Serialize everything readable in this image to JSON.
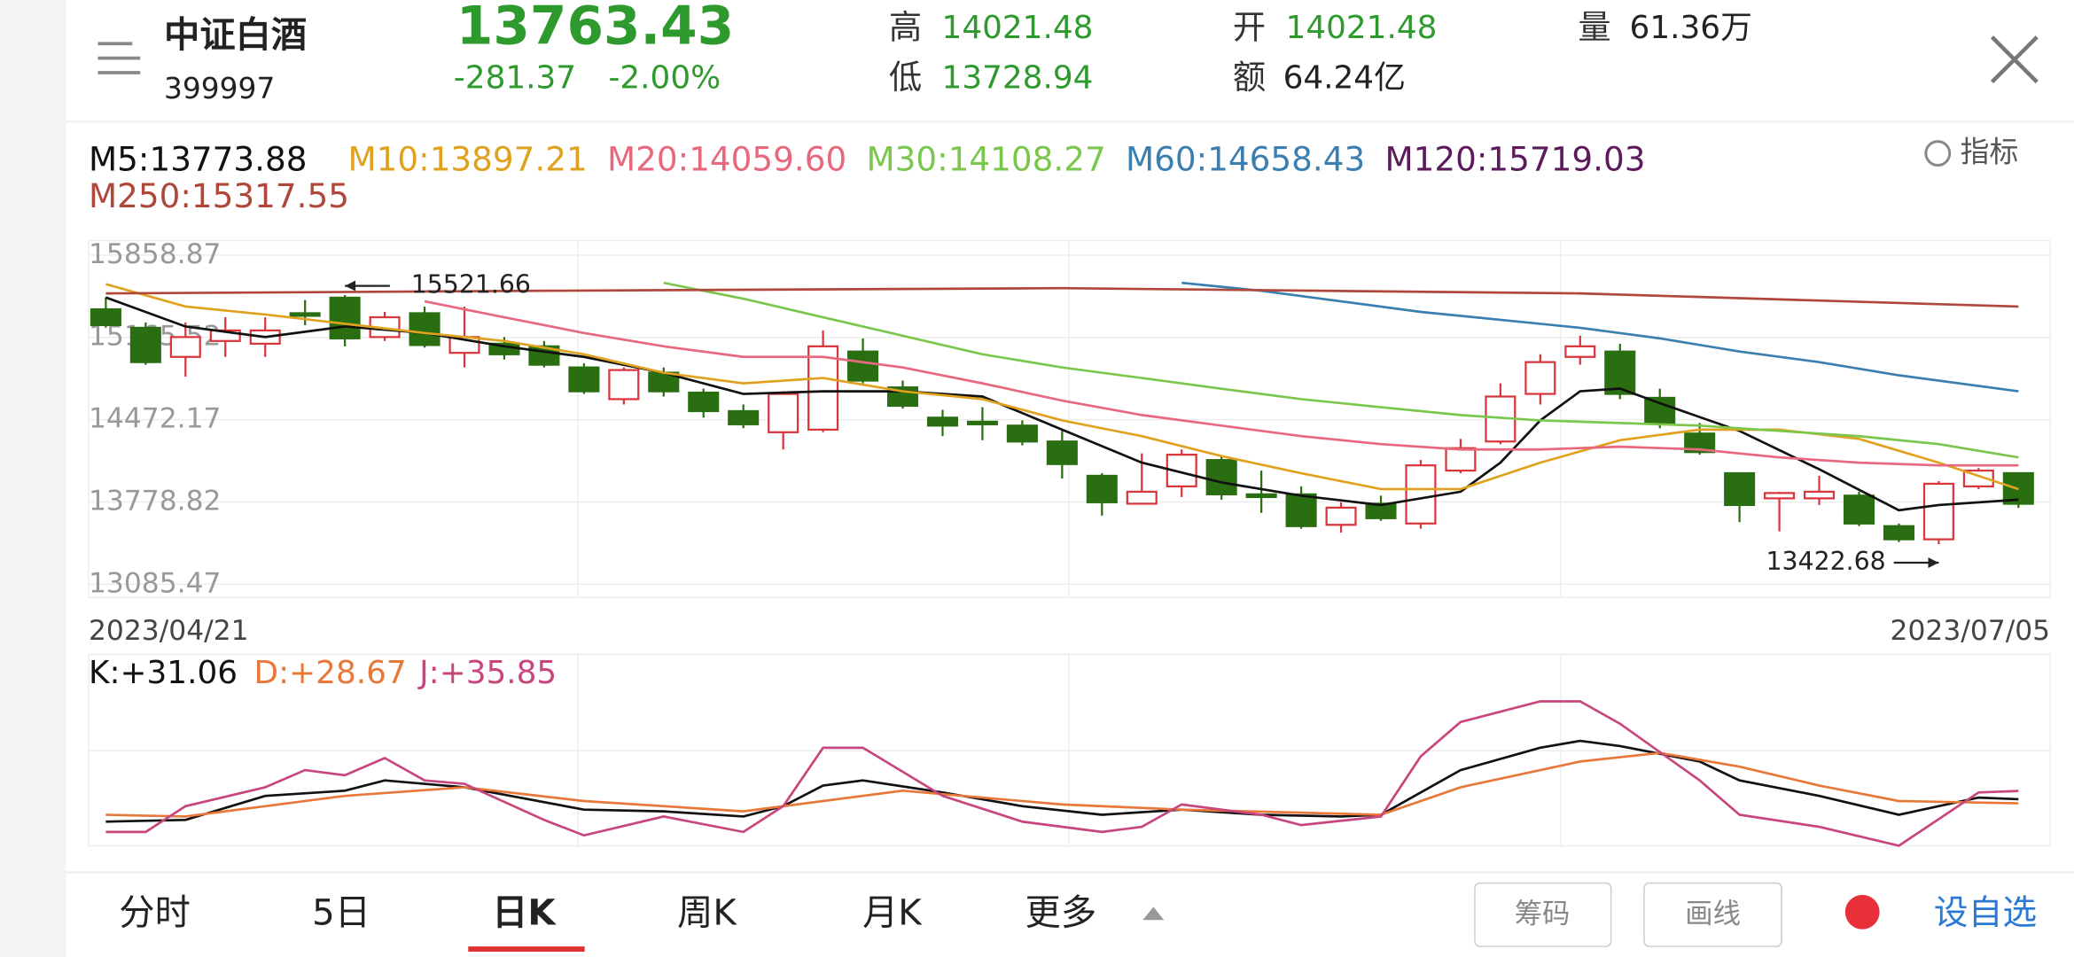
{
  "header": {
    "name": "中证白酒",
    "code": "399997",
    "price": "13763.43",
    "change": "-281.37",
    "change_pct": "-2.00%",
    "high_label": "高",
    "high": "14021.48",
    "low_label": "低",
    "low": "13728.94",
    "open_label": "开",
    "open": "14021.48",
    "amount_label": "额",
    "amount": "64.24亿",
    "volume_label": "量",
    "volume": "61.36万"
  },
  "indicator_button": "指标",
  "chart_data": [
    {
      "type": "candlestick",
      "up_color": "#d8353c",
      "down_color": "#2a6e12",
      "x_labels": [
        "2023/04/21",
        "2023/07/05"
      ],
      "ylim": [
        12974,
        15981
      ],
      "yticks": [
        15858.87,
        15165.52,
        14472.17,
        13778.82,
        13085.47
      ],
      "xlim": [
        0,
        48
      ],
      "grid": true,
      "open": [
        15402,
        15246,
        15001,
        15135,
        15112,
        15369,
        15500,
        15168,
        15369,
        15035,
        15112,
        15090,
        14912,
        14645,
        14868,
        14700,
        14544,
        14366,
        14388,
        15046,
        14744,
        14489,
        14455,
        14422,
        14288,
        13999,
        13764,
        13910,
        14132,
        13843,
        13843,
        13586,
        13764,
        13597,
        14043,
        14288,
        14689,
        15001,
        15046,
        14656,
        14355,
        14021,
        13809,
        13809,
        13832,
        13575,
        13464,
        13910,
        14021.48
      ],
      "high": [
        15503,
        15291,
        15291,
        15335,
        15335,
        15480,
        15521.66,
        15380,
        15425,
        15425,
        15168,
        15135,
        14946,
        14912,
        14912,
        14733,
        14600,
        14711,
        15224,
        15157,
        14801,
        14555,
        14577,
        14466,
        14377,
        14021,
        14188,
        14221,
        14165,
        14043,
        13910,
        13776,
        13832,
        14132,
        14310,
        14778,
        15023,
        15179,
        15112,
        14733,
        14444,
        14021,
        13865,
        13999,
        13865,
        13597,
        13954,
        14065,
        14021.48
      ],
      "low": [
        15247,
        14935,
        14834,
        15001,
        15001,
        15268,
        15090,
        15135,
        15079,
        14912,
        14979,
        14912,
        14689,
        14600,
        14667,
        14489,
        14400,
        14221,
        14366,
        14778,
        14566,
        14333,
        14299,
        14255,
        13976,
        13664,
        13764,
        13820,
        13798,
        13687,
        13553,
        13520,
        13620,
        13553,
        14021,
        14266,
        14600,
        14935,
        14645,
        14400,
        14177,
        13609,
        13531,
        13753,
        13575,
        13441,
        13422.68,
        13887,
        13728.94
      ],
      "close": [
        15269,
        14957,
        15168,
        15224,
        15224,
        15347,
        15157,
        15335,
        15101,
        15168,
        15023,
        14935,
        14711,
        14890,
        14711,
        14544,
        14433,
        14689,
        15090,
        14801,
        14589,
        14422,
        14433,
        14288,
        14098,
        13776,
        13865,
        14177,
        13843,
        13820,
        13575,
        13731,
        13642,
        14087,
        14232,
        14667,
        14957,
        15090,
        14689,
        14444,
        14199,
        13753,
        13854,
        13865,
        13597,
        13464,
        13932,
        14043,
        13763.43
      ],
      "series": [
        {
          "name": "M5:13773.88",
          "color": "#111111",
          "x": [
            0,
            2,
            4,
            6,
            8,
            10,
            12,
            14,
            16,
            18,
            20,
            22,
            24,
            26,
            28,
            30,
            32,
            34,
            35,
            36,
            37,
            38,
            39,
            41,
            43,
            45,
            46,
            48
          ],
          "values": [
            15502,
            15257,
            15168,
            15257,
            15202,
            15090,
            15001,
            14867,
            14689,
            14711,
            14711,
            14667,
            14388,
            14110,
            13943,
            13831,
            13753,
            13865,
            14110,
            14466,
            14711,
            14734,
            14611,
            14377,
            14054,
            13709,
            13753,
            13798
          ]
        },
        {
          "name": "M10:13897.21",
          "color": "#e0a21e",
          "x": [
            0,
            2,
            4,
            6,
            8,
            10,
            12,
            14,
            16,
            18,
            20,
            22,
            24,
            26,
            28,
            30,
            32,
            34,
            36,
            38,
            40,
            42,
            44,
            46,
            48
          ],
          "values": [
            15614,
            15425,
            15358,
            15280,
            15202,
            15135,
            15023,
            14867,
            14778,
            14823,
            14711,
            14645,
            14466,
            14333,
            14165,
            14021,
            13887,
            13887,
            14110,
            14299,
            14388,
            14388,
            14310,
            14110,
            13887
          ]
        },
        {
          "name": "M20:14059.60",
          "color": "#e8697d",
          "x": [
            8,
            10,
            12,
            14,
            16,
            18,
            20,
            22,
            24,
            26,
            28,
            30,
            32,
            34,
            36,
            38,
            40,
            42,
            44,
            46,
            48
          ],
          "values": [
            15469,
            15335,
            15202,
            15090,
            15001,
            15001,
            14912,
            14778,
            14633,
            14511,
            14422,
            14333,
            14266,
            14221,
            14221,
            14244,
            14221,
            14154,
            14110,
            14087,
            14087
          ]
        },
        {
          "name": "M30:14108.27",
          "color": "#7bc74d",
          "x": [
            14,
            16,
            18,
            20,
            22,
            24,
            26,
            28,
            30,
            32,
            34,
            36,
            38,
            40,
            42,
            44,
            46,
            48
          ],
          "values": [
            15625,
            15491,
            15335,
            15179,
            15023,
            14912,
            14823,
            14733,
            14645,
            14577,
            14511,
            14466,
            14444,
            14422,
            14377,
            14333,
            14266,
            14154
          ]
        },
        {
          "name": "M60:14658.43",
          "color": "#3b7fb0",
          "x": [
            27,
            29,
            31,
            33,
            35,
            37,
            39,
            41,
            43,
            45,
            48
          ],
          "values": [
            15625,
            15558,
            15469,
            15380,
            15313,
            15246,
            15157,
            15046,
            14957,
            14846,
            14711
          ]
        },
        {
          "name": "M120:15719.03",
          "color": "#5c1a5c",
          "x": [],
          "values": []
        },
        {
          "name": "M250:15317.55",
          "color": "#b0473b",
          "x": [
            0,
            11,
            24,
            37,
            48
          ],
          "values": [
            15536,
            15558,
            15580,
            15536,
            15425
          ]
        }
      ]
    },
    {
      "type": "line",
      "ylim": [
        0,
        100
      ],
      "xlim": [
        0,
        48
      ],
      "series": [
        {
          "name": "K:+31.06",
          "color": "#111111",
          "x": [
            0,
            2,
            4,
            6,
            7,
            9,
            12,
            14,
            16,
            17,
            18,
            19,
            21,
            23,
            25,
            27,
            29,
            31,
            32,
            33,
            34,
            36,
            37,
            38,
            40,
            41,
            43,
            45,
            47,
            48
          ],
          "values": [
            18,
            19,
            33,
            36,
            42,
            38,
            25,
            24,
            21,
            27,
            39,
            42,
            35,
            27,
            22,
            25,
            22,
            21,
            22,
            35,
            48,
            61,
            65,
            62,
            53,
            42,
            33,
            22,
            32,
            31.06
          ]
        },
        {
          "name": "D:+28.67",
          "color": "#e8783a",
          "x": [
            0,
            2,
            4,
            6,
            9,
            12,
            16,
            20,
            24,
            27,
            32,
            34,
            37,
            39,
            41,
            43,
            45,
            48
          ],
          "values": [
            22,
            21,
            27,
            33,
            38,
            30,
            24,
            36,
            28,
            25,
            22,
            38,
            53,
            58,
            50,
            39,
            30,
            28.67
          ]
        },
        {
          "name": "J:+35.85",
          "color": "#c8457e",
          "x": [
            0,
            1,
            2,
            4,
            5,
            6,
            7,
            8,
            9,
            11,
            12,
            14,
            16,
            17,
            18,
            19,
            21,
            23,
            25,
            26,
            27,
            29,
            30,
            32,
            33,
            34,
            36,
            37,
            38,
            40,
            41,
            43,
            45,
            47,
            48
          ],
          "values": [
            12,
            12,
            27,
            38,
            48,
            45,
            55,
            42,
            40,
            19,
            10,
            21,
            12,
            27,
            61,
            61,
            33,
            18,
            12,
            15,
            28,
            22,
            16,
            21,
            56,
            76,
            88,
            88,
            75,
            42,
            22,
            15,
            4,
            35,
            35.85
          ]
        }
      ]
    }
  ],
  "tabs": [
    "分时",
    "5日",
    "日K",
    "周K",
    "月K",
    "更多"
  ],
  "buttons": [
    "筹码",
    "画线"
  ],
  "add_watchlist": "设自选"
}
